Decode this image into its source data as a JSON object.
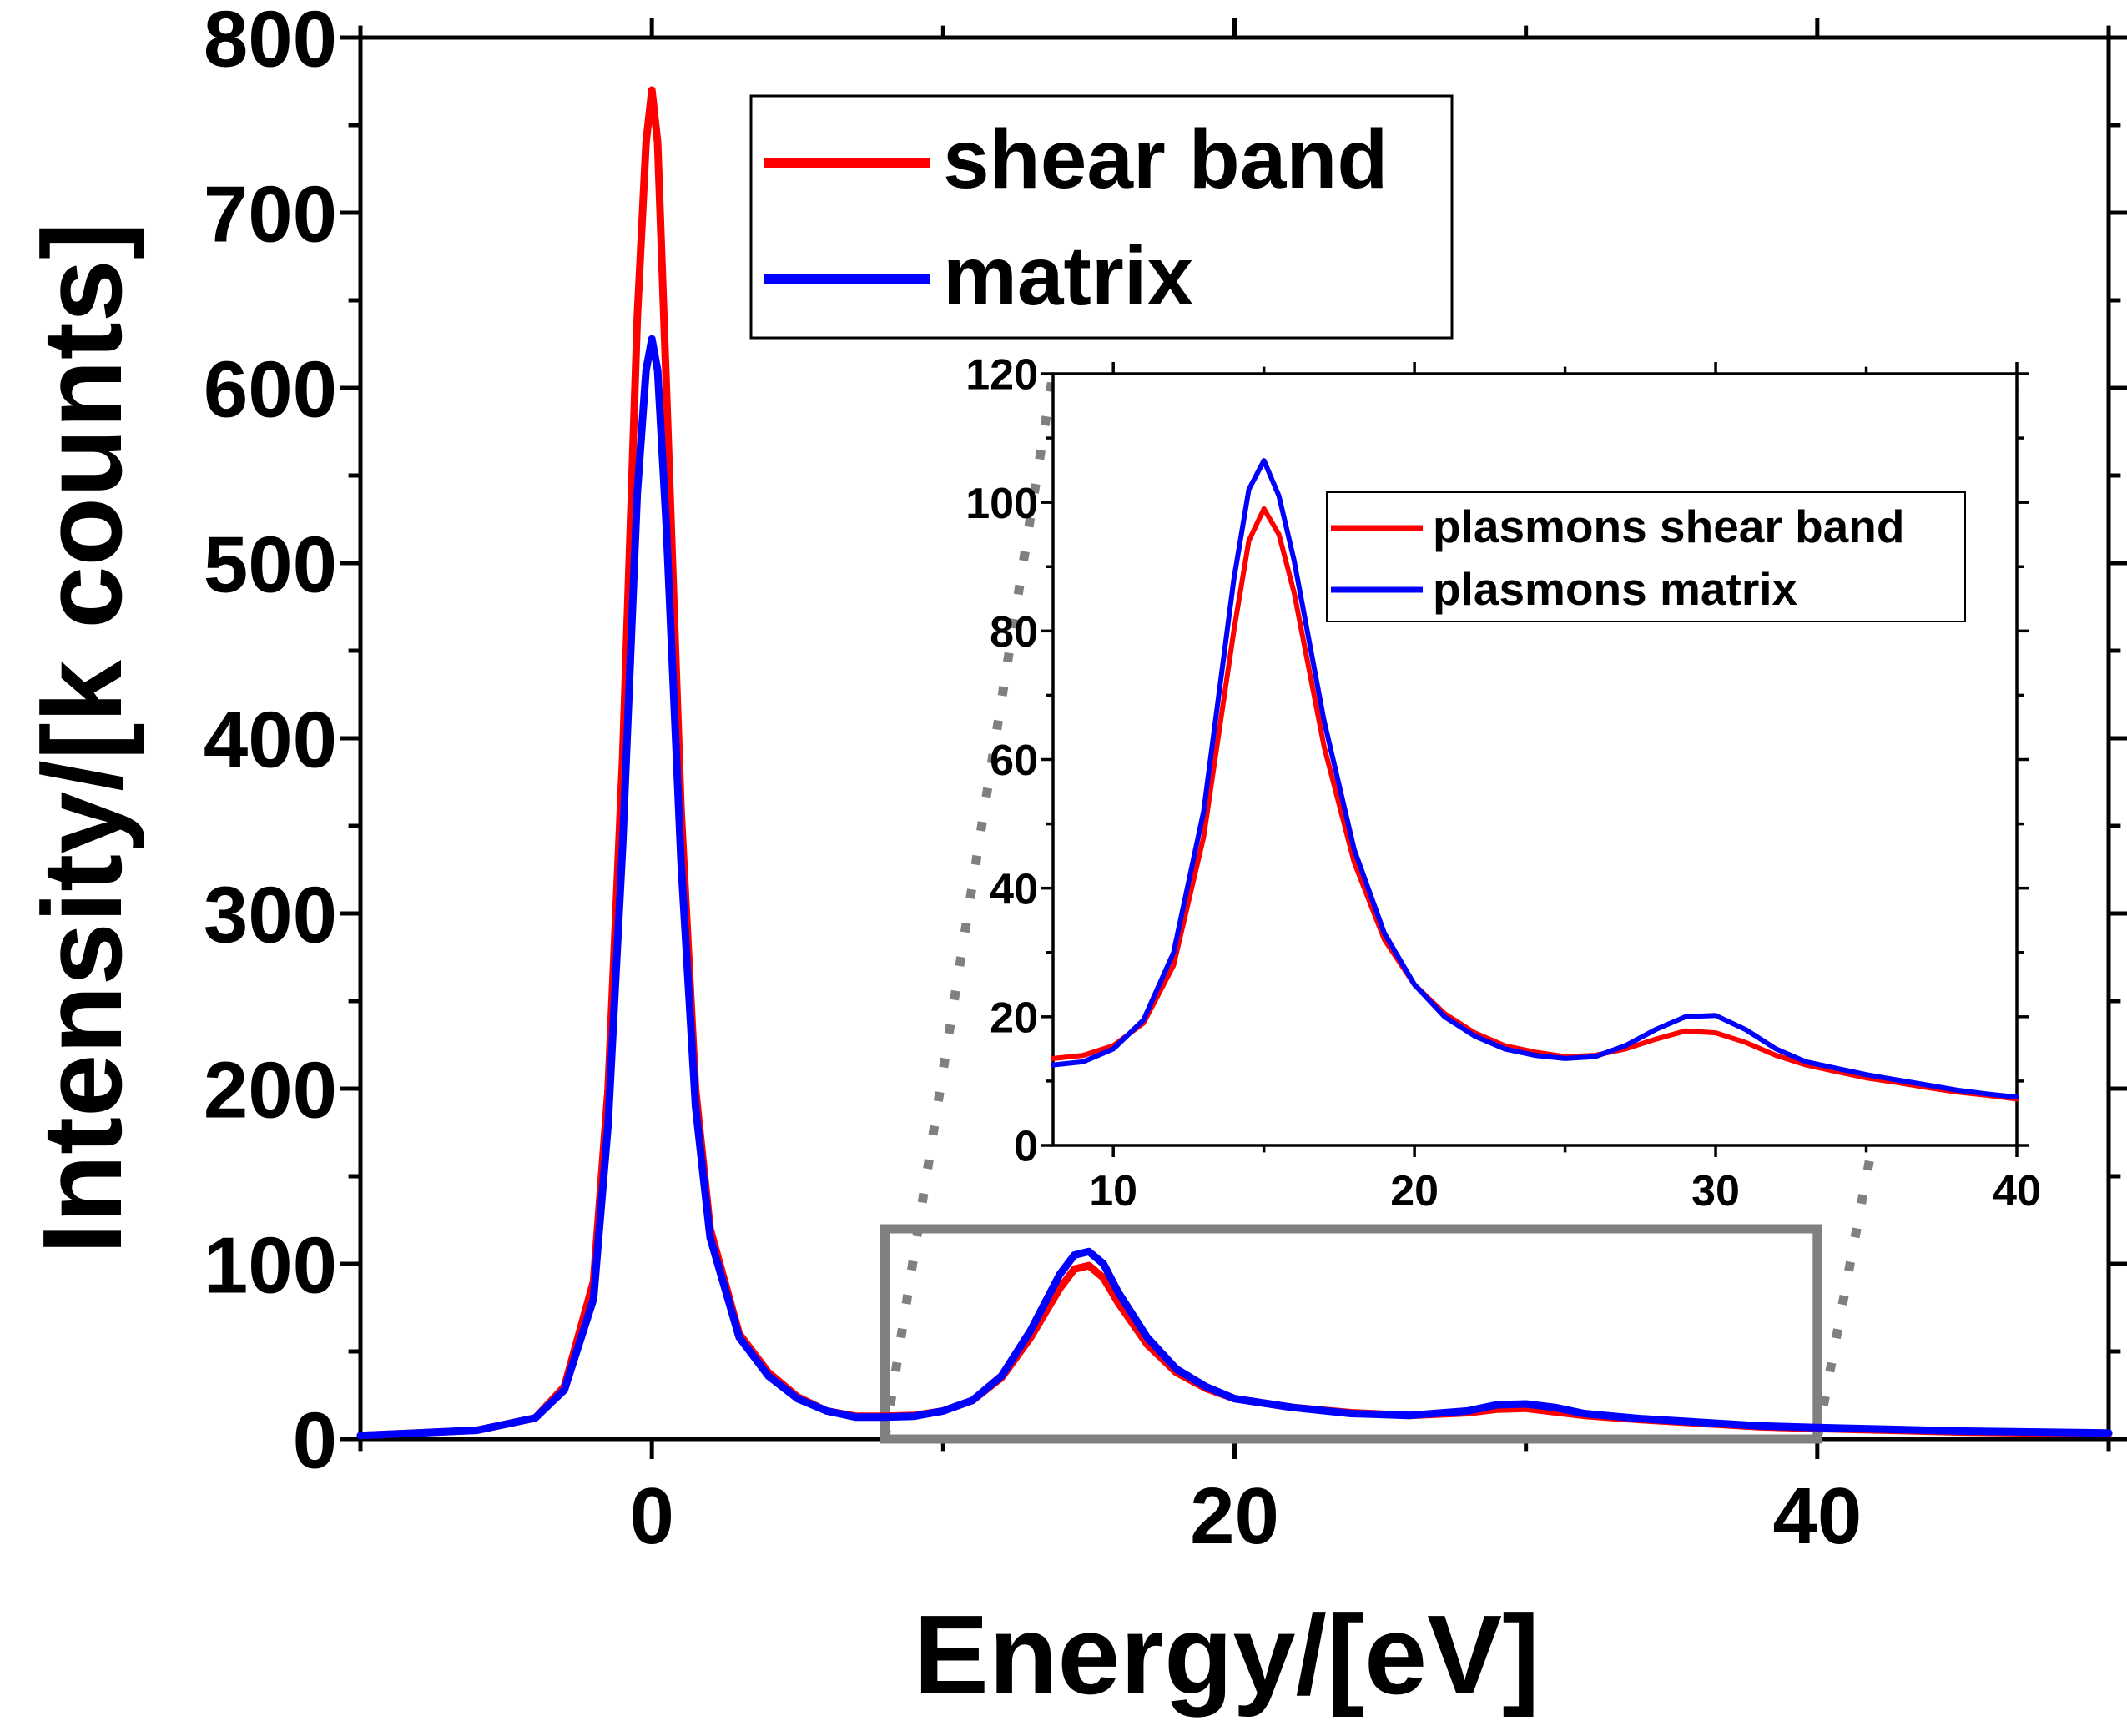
{
  "chart_data": [
    {
      "id": "main",
      "type": "line",
      "title": "",
      "xlabel": "Energy/[eV]",
      "ylabel": "Intensity/[k counts]",
      "xlim": [
        -10,
        50
      ],
      "ylim": [
        0,
        800
      ],
      "grid": false,
      "legend_position": "top-center",
      "x_ticks": [
        0,
        20,
        40
      ],
      "x_tick_labels": [
        "0",
        "20",
        "40"
      ],
      "y_ticks": [
        0,
        100,
        200,
        300,
        400,
        500,
        600,
        700,
        800
      ],
      "y_tick_labels": [
        "0",
        "100",
        "200",
        "300",
        "400",
        "500",
        "600",
        "700",
        "800"
      ],
      "series": [
        {
          "name": "shear band",
          "color": "#ff0000",
          "x": [
            -10,
            -6,
            -4,
            -3,
            -2,
            -1.5,
            -1,
            -0.5,
            -0.2,
            0,
            0.2,
            0.5,
            1,
            1.5,
            2,
            3,
            4,
            5,
            6,
            7,
            8,
            9,
            10,
            11,
            12,
            13,
            14,
            14.5,
            15,
            15.5,
            16,
            17,
            18,
            19,
            20,
            22,
            24,
            26,
            28,
            29,
            30,
            31,
            32,
            34,
            36,
            38,
            40,
            45,
            50
          ],
          "y": [
            2,
            5,
            12,
            30,
            90,
            200,
            390,
            640,
            740,
            770,
            740,
            600,
            360,
            200,
            120,
            60,
            38,
            24,
            16,
            13,
            13,
            13.5,
            16,
            22,
            35,
            58,
            86,
            97,
            99,
            92,
            78,
            54,
            38,
            29,
            23,
            18,
            15,
            13.5,
            15,
            17,
            17.5,
            15.5,
            13.5,
            11,
            9,
            7,
            6,
            4,
            3
          ]
        },
        {
          "name": "matrix",
          "color": "#0000ff",
          "x": [
            -10,
            -6,
            -4,
            -3,
            -2,
            -1.5,
            -1,
            -0.5,
            -0.2,
            0,
            0.2,
            0.5,
            1,
            1.5,
            2,
            3,
            4,
            5,
            6,
            7,
            8,
            9,
            10,
            11,
            12,
            13,
            14,
            14.5,
            15,
            15.5,
            16,
            17,
            18,
            19,
            20,
            22,
            24,
            26,
            28,
            29,
            30,
            31,
            32,
            34,
            36,
            38,
            40,
            45,
            50
          ],
          "y": [
            2,
            5,
            12,
            28,
            80,
            180,
            340,
            540,
            610,
            628,
            610,
            520,
            330,
            190,
            115,
            58,
            36,
            23,
            16,
            12.5,
            12.5,
            13,
            16,
            22,
            36,
            62,
            94,
            105,
            107,
            100,
            84,
            58,
            40,
            30,
            23,
            18,
            14.5,
            13.5,
            16,
            19.5,
            20,
            18,
            14.5,
            11.5,
            9.5,
            7.5,
            6.5,
            4.5,
            3.5
          ]
        }
      ]
    },
    {
      "id": "inset",
      "type": "line",
      "title": "",
      "xlabel": "",
      "ylabel": "",
      "xlim": [
        8,
        40
      ],
      "ylim": [
        0,
        120
      ],
      "grid": false,
      "legend_position": "top-right",
      "zoom_region": {
        "x": [
          8,
          40
        ],
        "y": [
          0,
          120
        ]
      },
      "x_ticks": [
        10,
        20,
        30,
        40
      ],
      "x_tick_labels": [
        "10",
        "20",
        "30",
        "40"
      ],
      "y_ticks": [
        0,
        20,
        40,
        60,
        80,
        100,
        120
      ],
      "y_tick_labels": [
        "0",
        "20",
        "40",
        "60",
        "80",
        "100",
        "120"
      ],
      "series": [
        {
          "name": "plasmons shear band",
          "color": "#ff0000",
          "x": [
            8,
            9,
            10,
            11,
            12,
            13,
            14,
            14.5,
            15,
            15.5,
            16,
            17,
            18,
            19,
            20,
            21,
            22,
            23,
            24,
            25,
            26,
            27,
            28,
            29,
            30,
            31,
            32,
            33,
            34,
            35,
            36,
            37,
            38,
            39,
            40
          ],
          "y": [
            13.5,
            14,
            15.5,
            19,
            28,
            48,
            80,
            94,
            99,
            95,
            86,
            62,
            44,
            32,
            25,
            20.5,
            17.5,
            15.5,
            14.5,
            13.8,
            14,
            15,
            16.5,
            17.8,
            17.5,
            16,
            14,
            12.5,
            11.5,
            10.5,
            9.8,
            9,
            8.3,
            7.8,
            7.2
          ]
        },
        {
          "name": "plasmons matrix",
          "color": "#0000ff",
          "x": [
            8,
            9,
            10,
            11,
            12,
            13,
            14,
            14.5,
            15,
            15.5,
            16,
            17,
            18,
            19,
            20,
            21,
            22,
            23,
            24,
            25,
            26,
            27,
            28,
            29,
            30,
            31,
            32,
            33,
            34,
            35,
            36,
            37,
            38,
            39,
            40
          ],
          "y": [
            12.5,
            13,
            15,
            19.5,
            30,
            52,
            88,
            102,
            106.5,
            101,
            91,
            66,
            46,
            33,
            25,
            20,
            17,
            15,
            14,
            13.5,
            13.8,
            15.5,
            18,
            20,
            20.2,
            18,
            15,
            13,
            12,
            11,
            10.2,
            9.4,
            8.6,
            8,
            7.5
          ]
        }
      ]
    }
  ]
}
